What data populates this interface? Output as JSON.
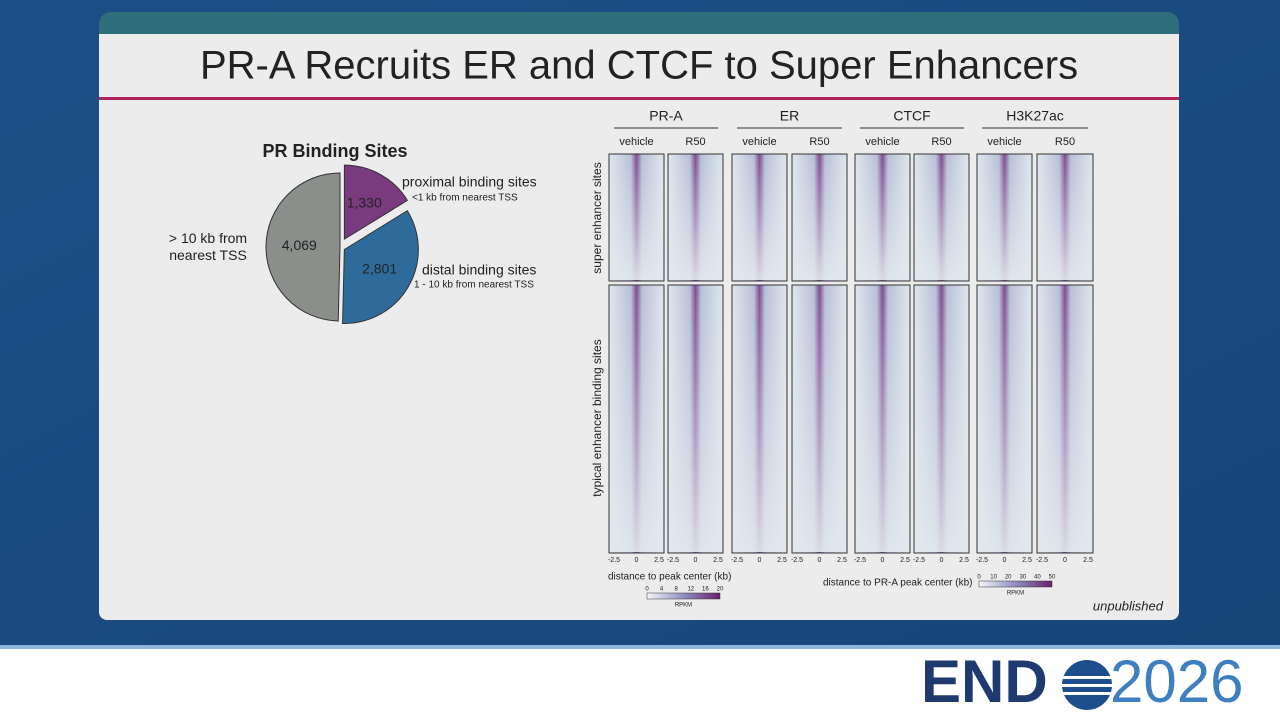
{
  "slide": {
    "title": "PR-A Recruits ER and CTCF to Super Enhancers",
    "note": "unpublished"
  },
  "chart_data": {
    "type": "pie",
    "title": "PR Binding Sites",
    "categories": [
      "proximal binding sites",
      "distal binding sites",
      "> 10 kb from nearest TSS"
    ],
    "annotations": [
      "<1 kb from nearest TSS",
      "1 - 10 kb from nearest TSS"
    ],
    "values": [
      1330,
      2801,
      4069
    ],
    "value_labels": [
      "1,330",
      "2,801",
      "4,069"
    ],
    "colors": [
      "#7a3a7e",
      "#2f6b9a",
      "#8b8f8b"
    ]
  },
  "heatmap": {
    "groups": [
      "PR-A",
      "ER",
      "CTCF",
      "H3K27ac"
    ],
    "conditions": [
      "vehicle",
      "R50"
    ],
    "rows": [
      "super enhancer sites",
      "typical enhancer binding sites"
    ],
    "axis_ticks": [
      "-2.5",
      "0",
      "2.5"
    ],
    "xlabel_left": "distance to peak center (kb)",
    "xlabel_right": "distance to PR-A peak center (kb)",
    "scale_left": {
      "ticks": [
        0,
        4,
        8,
        12,
        16,
        20
      ],
      "label": "RPKM"
    },
    "scale_right": {
      "ticks": [
        0,
        10,
        20,
        30,
        40,
        50
      ],
      "label": "RPKM"
    }
  },
  "footer": {
    "logo_left": "END",
    "logo_right": "2026"
  }
}
